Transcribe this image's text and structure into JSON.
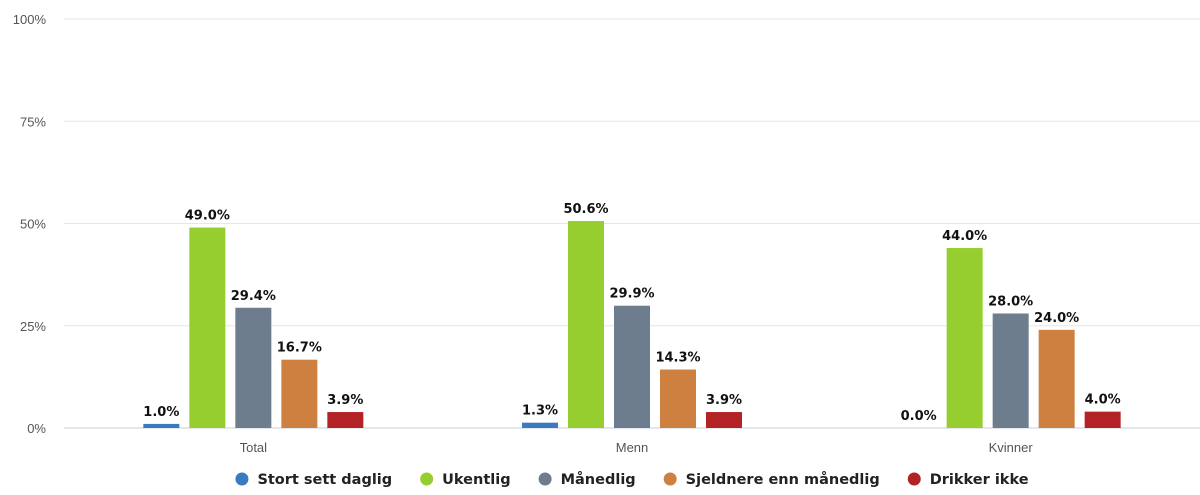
{
  "chart_data": {
    "type": "bar",
    "categories": [
      "Total",
      "Menn",
      "Kvinner"
    ],
    "series": [
      {
        "name": "Stort sett daglig",
        "color": "#3a7abf",
        "values": [
          1.0,
          1.3,
          0.0
        ],
        "labels": [
          "1.0%",
          "1.3%",
          "0.0%"
        ]
      },
      {
        "name": "Ukentlig",
        "color": "#95ce2e",
        "values": [
          49.0,
          50.6,
          44.0
        ],
        "labels": [
          "49.0%",
          "50.6%",
          "44.0%"
        ]
      },
      {
        "name": "Månedlig",
        "color": "#6d7d8e",
        "values": [
          29.4,
          29.9,
          28.0
        ],
        "labels": [
          "29.4%",
          "29.9%",
          "28.0%"
        ]
      },
      {
        "name": "Sjeldnere enn månedlig",
        "color": "#cd8040",
        "values": [
          16.7,
          14.3,
          24.0
        ],
        "labels": [
          "16.7%",
          "14.3%",
          "24.0%"
        ]
      },
      {
        "name": "Drikker ikke",
        "color": "#b32225",
        "values": [
          3.9,
          3.9,
          4.0
        ],
        "labels": [
          "3.9%",
          "3.9%",
          "4.0%"
        ]
      }
    ],
    "ylim": [
      0,
      100
    ],
    "yticks": [
      {
        "value": 0,
        "label": "0%"
      },
      {
        "value": 25,
        "label": "25%"
      },
      {
        "value": 50,
        "label": "50%"
      },
      {
        "value": 75,
        "label": "75%"
      },
      {
        "value": 100,
        "label": "100%"
      }
    ],
    "grid": true,
    "legend_position": "bottom"
  }
}
